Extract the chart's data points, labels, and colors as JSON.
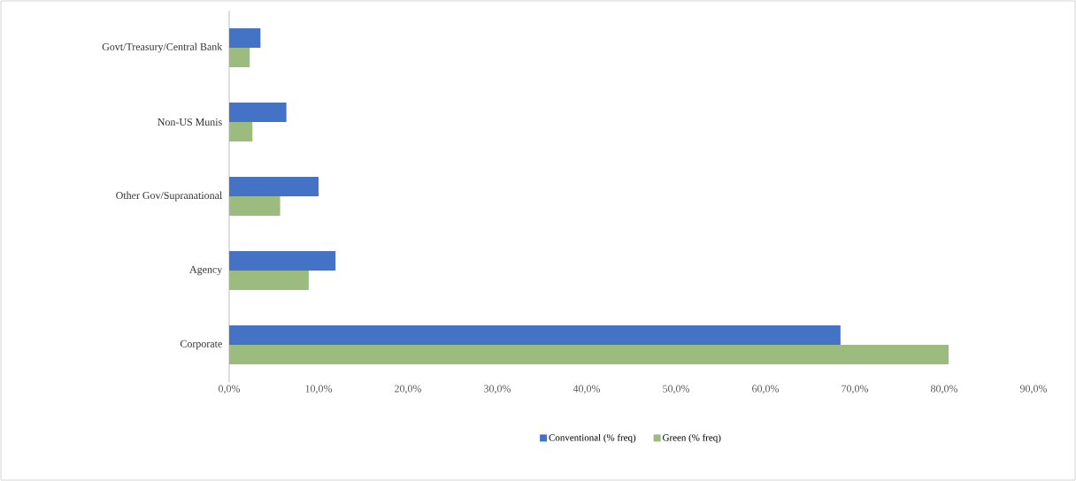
{
  "chart_data": {
    "type": "bar",
    "orientation": "horizontal",
    "categories": [
      "Govt/Treasury/Central Bank",
      "Non-US Munis",
      "Other Gov/Supranational",
      "Agency",
      "Corporate"
    ],
    "series": [
      {
        "name": "Conventional (% freq)",
        "color": "#4472c4",
        "values": [
          3.5,
          6.4,
          10.0,
          11.9,
          68.4
        ]
      },
      {
        "name": "Green (% freq)",
        "color": "#9bbb7f",
        "values": [
          2.3,
          2.6,
          5.7,
          8.9,
          80.5
        ]
      }
    ],
    "xlim": [
      0,
      90
    ],
    "xticks": [
      {
        "value": 0,
        "label": "0,0%"
      },
      {
        "value": 10,
        "label": "10,0%"
      },
      {
        "value": 20,
        "label": "20,0%"
      },
      {
        "value": 30,
        "label": "30,0%"
      },
      {
        "value": 40,
        "label": "40,0%"
      },
      {
        "value": 50,
        "label": "50,0%"
      },
      {
        "value": 60,
        "label": "60,0%"
      },
      {
        "value": 70,
        "label": "70,0%"
      },
      {
        "value": 80,
        "label": "80,0%"
      },
      {
        "value": 90,
        "label": "90,0%"
      }
    ],
    "grid": false,
    "legend": "bottom"
  }
}
